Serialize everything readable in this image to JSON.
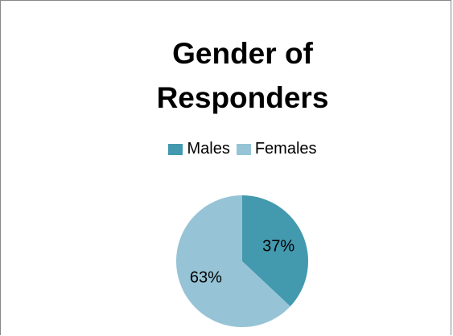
{
  "chart_data": {
    "type": "pie",
    "title_lines": [
      "Gender of",
      "Responders"
    ],
    "categories": [
      "Males",
      "Females"
    ],
    "values": [
      37,
      63
    ],
    "value_labels": [
      "37%",
      "63%"
    ],
    "colors": [
      "#4399ae",
      "#96c4d6"
    ],
    "legend_position": "top"
  }
}
